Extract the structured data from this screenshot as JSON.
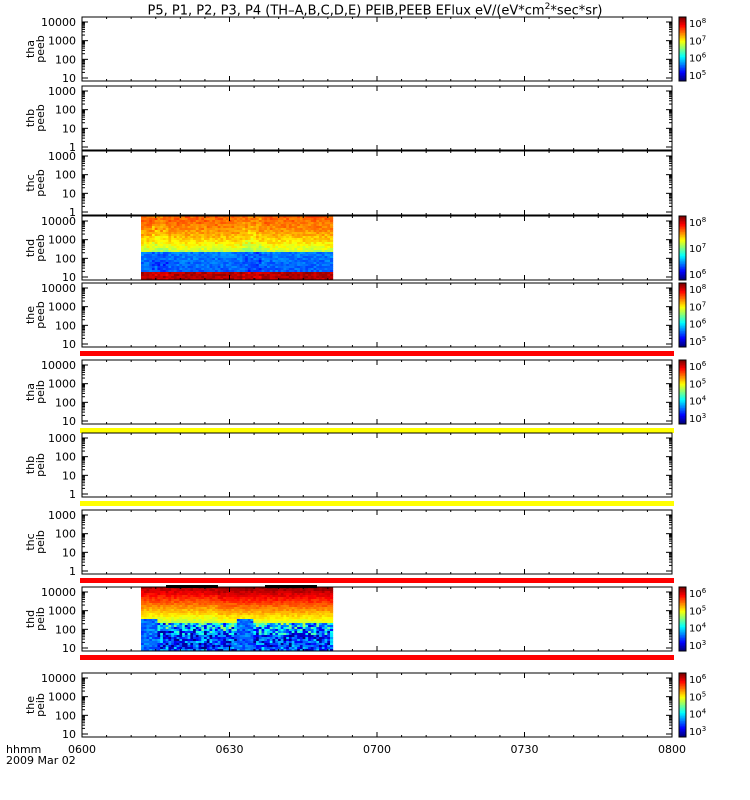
{
  "title_prefix": "P5, P1, P2, P3, P4 (TH–A,B,C,D,E) PEIB,PEEB EFlux eV/(eV*cm",
  "title_sup": "2",
  "title_suffix": "*sec*sr)",
  "footer": {
    "hhmm": "hhmm",
    "date": "2009 Mar 02"
  },
  "chart_data": {
    "type": "heatmap",
    "title": "P5, P1, P2, P3, P4 (TH-A,B,C,D,E) PEIB,PEEB EFlux eV/(eV*cm^2*sec*sr)",
    "x_axis": {
      "label": "hhmm",
      "date": "2009 Mar 02",
      "range": [
        "0600",
        "0800"
      ],
      "ticks": [
        "0600",
        "0630",
        "0700",
        "0730",
        "0800"
      ]
    },
    "panels": [
      {
        "probe": "tha",
        "product": "peeb",
        "ylabel": [
          "tha",
          "peeb"
        ],
        "yticks": [
          "10",
          "100",
          "1000",
          "10000"
        ],
        "colorbar": [
          "10^5",
          "10^6",
          "10^7",
          "10^8"
        ],
        "data": "none"
      },
      {
        "probe": "thb",
        "product": "peeb",
        "ylabel": [
          "thb",
          "peeb"
        ],
        "yticks": [
          "1",
          "10",
          "100",
          "1000"
        ],
        "colorbar": null,
        "data": "none"
      },
      {
        "probe": "thc",
        "product": "peeb",
        "ylabel": [
          "thc",
          "peeb"
        ],
        "yticks": [
          "1",
          "10",
          "100",
          "1000"
        ],
        "colorbar": null,
        "data": "none"
      },
      {
        "probe": "thd",
        "product": "peeb",
        "ylabel": [
          "thd",
          "peeb"
        ],
        "yticks": [
          "10",
          "100",
          "1000",
          "10000"
        ],
        "colorbar": [
          "10^6",
          "10^7",
          "10^8"
        ],
        "data": "spectrogram",
        "time_range": [
          "0612",
          "0651"
        ]
      },
      {
        "probe": "the",
        "product": "peeb",
        "ylabel": [
          "the",
          "peeb"
        ],
        "yticks": [
          "10",
          "100",
          "1000",
          "10000"
        ],
        "colorbar": [
          "10^5",
          "10^6",
          "10^7",
          "10^8"
        ],
        "data": "none",
        "bottom_band": "red"
      },
      {
        "probe": "tha",
        "product": "peib",
        "ylabel": [
          "tha",
          "peib"
        ],
        "yticks": [
          "10",
          "100",
          "1000",
          "10000"
        ],
        "colorbar": [
          "10^3",
          "10^4",
          "10^5",
          "10^6"
        ],
        "data": "none",
        "bottom_band": "yellow"
      },
      {
        "probe": "thb",
        "product": "peib",
        "ylabel": [
          "thb",
          "peib"
        ],
        "yticks": [
          "1",
          "10",
          "100",
          "1000"
        ],
        "colorbar": null,
        "data": "none",
        "bottom_band": "yellow"
      },
      {
        "probe": "thc",
        "product": "peib",
        "ylabel": [
          "thc",
          "peib"
        ],
        "yticks": [
          "1",
          "10",
          "100",
          "1000"
        ],
        "colorbar": null,
        "data": "none",
        "bottom_band": "red"
      },
      {
        "probe": "thd",
        "product": "peib",
        "ylabel": [
          "thd",
          "peib"
        ],
        "yticks": [
          "10",
          "100",
          "1000",
          "10000"
        ],
        "colorbar": [
          "10^3",
          "10^4",
          "10^5",
          "10^6"
        ],
        "data": "spectrogram",
        "time_range": [
          "0612",
          "0651"
        ],
        "bottom_band": "red"
      },
      {
        "probe": "the",
        "product": "peib",
        "ylabel": [
          "the",
          "peib"
        ],
        "yticks": [
          "10",
          "100",
          "1000",
          "10000"
        ],
        "colorbar": [
          "10^3",
          "10^4",
          "10^5",
          "10^6"
        ],
        "data": "none"
      }
    ]
  }
}
